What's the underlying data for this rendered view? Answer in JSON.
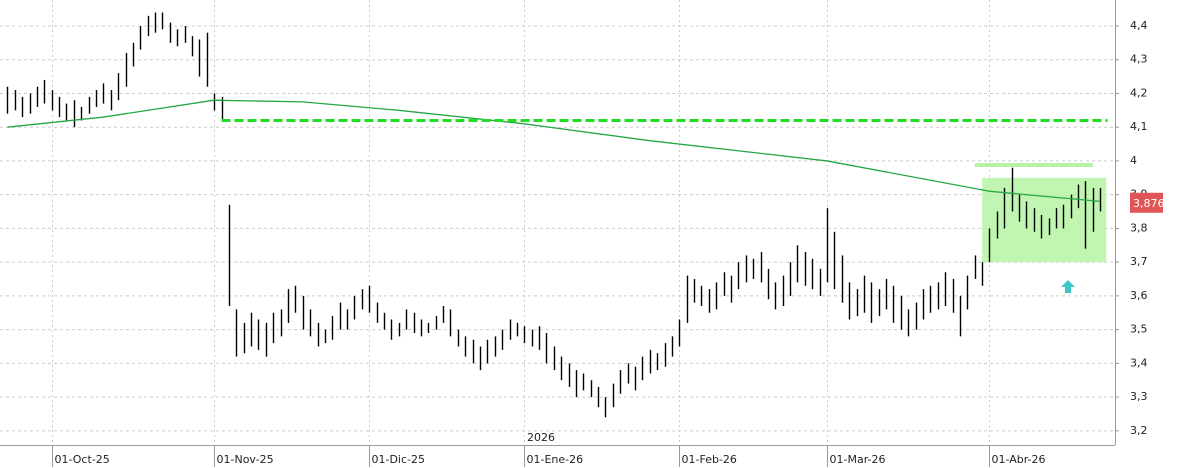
{
  "chart_data": {
    "type": "ohlc",
    "high": [
      4.22,
      4.21,
      4.19,
      4.2,
      4.22,
      4.24,
      4.21,
      4.19,
      4.17,
      4.18,
      4.16,
      4.19,
      4.21,
      4.23,
      4.21,
      4.26,
      4.32,
      4.35,
      4.4,
      4.43,
      4.44,
      4.44,
      4.41,
      4.39,
      4.4,
      4.37,
      4.36,
      4.38,
      4.2,
      4.19,
      3.87,
      3.56,
      3.52,
      3.55,
      3.53,
      3.52,
      3.55,
      3.56,
      3.62,
      3.63,
      3.6,
      3.56,
      3.52,
      3.5,
      3.54,
      3.58,
      3.56,
      3.6,
      3.62,
      3.63,
      3.58,
      3.55,
      3.53,
      3.52,
      3.56,
      3.55,
      3.53,
      3.52,
      3.54,
      3.57,
      3.56,
      3.5,
      3.48,
      3.47,
      3.45,
      3.47,
      3.48,
      3.5,
      3.53,
      3.52,
      3.51,
      3.5,
      3.51,
      3.49,
      3.45,
      3.42,
      3.4,
      3.38,
      3.37,
      3.35,
      3.33,
      3.3,
      3.34,
      3.38,
      3.4,
      3.39,
      3.42,
      3.44,
      3.43,
      3.46,
      3.48,
      3.53,
      3.66,
      3.65,
      3.63,
      3.62,
      3.64,
      3.67,
      3.66,
      3.7,
      3.72,
      3.71,
      3.73,
      3.68,
      3.64,
      3.66,
      3.7,
      3.75,
      3.73,
      3.71,
      3.68,
      3.86,
      3.79,
      3.72,
      3.64,
      3.62,
      3.66,
      3.64,
      3.62,
      3.65,
      3.63,
      3.6,
      3.56,
      3.58,
      3.62,
      3.63,
      3.64,
      3.67,
      3.65,
      3.6,
      3.66,
      3.72,
      3.7,
      3.8,
      3.85,
      3.92,
      3.98,
      3.9,
      3.88,
      3.86,
      3.84,
      3.83,
      3.86,
      3.87,
      3.9,
      3.93,
      3.94,
      3.92,
      3.92
    ],
    "low": [
      4.14,
      4.15,
      4.13,
      4.14,
      4.16,
      4.17,
      4.15,
      4.13,
      4.12,
      4.1,
      4.12,
      4.14,
      4.16,
      4.17,
      4.15,
      4.18,
      4.22,
      4.28,
      4.33,
      4.37,
      4.38,
      4.39,
      4.35,
      4.34,
      4.35,
      4.31,
      4.25,
      4.22,
      4.15,
      4.12,
      3.57,
      3.42,
      3.43,
      3.45,
      3.44,
      3.42,
      3.46,
      3.48,
      3.52,
      3.55,
      3.5,
      3.48,
      3.45,
      3.46,
      3.47,
      3.5,
      3.5,
      3.53,
      3.56,
      3.55,
      3.52,
      3.5,
      3.47,
      3.48,
      3.5,
      3.49,
      3.48,
      3.49,
      3.5,
      3.52,
      3.48,
      3.45,
      3.42,
      3.4,
      3.38,
      3.4,
      3.42,
      3.44,
      3.47,
      3.48,
      3.46,
      3.45,
      3.44,
      3.4,
      3.38,
      3.35,
      3.33,
      3.3,
      3.32,
      3.3,
      3.27,
      3.24,
      3.27,
      3.31,
      3.34,
      3.32,
      3.35,
      3.37,
      3.38,
      3.39,
      3.42,
      3.45,
      3.52,
      3.58,
      3.57,
      3.55,
      3.56,
      3.6,
      3.58,
      3.62,
      3.64,
      3.65,
      3.64,
      3.59,
      3.56,
      3.57,
      3.6,
      3.64,
      3.63,
      3.62,
      3.6,
      3.64,
      3.62,
      3.58,
      3.53,
      3.54,
      3.55,
      3.52,
      3.54,
      3.56,
      3.52,
      3.5,
      3.48,
      3.5,
      3.53,
      3.55,
      3.56,
      3.57,
      3.55,
      3.48,
      3.56,
      3.65,
      3.63,
      3.7,
      3.77,
      3.8,
      3.85,
      3.82,
      3.8,
      3.79,
      3.77,
      3.78,
      3.8,
      3.8,
      3.83,
      3.86,
      3.74,
      3.79,
      3.85
    ],
    "moving_average": {
      "x": [
        0,
        13,
        28,
        40,
        53,
        70,
        87,
        111,
        133,
        148
      ],
      "values": [
        4.1,
        4.13,
        4.18,
        4.175,
        4.15,
        4.11,
        4.06,
        4.0,
        3.91,
        3.88
      ]
    },
    "resistance": {
      "value": 4.12,
      "x": [
        29,
        149
      ]
    },
    "range_top": {
      "value": 3.988,
      "x": [
        131,
        147
      ]
    },
    "range_box": {
      "x": [
        132,
        148
      ],
      "y": [
        3.7,
        3.95
      ]
    },
    "last_price": {
      "value": 3.876,
      "label": "3,876"
    },
    "year_label": "2026",
    "xlim": [
      -1,
      150
    ],
    "xticks": [
      {
        "value": 6,
        "label": "01-Oct-25"
      },
      {
        "value": 28,
        "label": "01-Nov-25"
      },
      {
        "value": 49,
        "label": "01-Dic-25"
      },
      {
        "value": 70,
        "label": "01-Ene-26"
      },
      {
        "value": 91,
        "label": "01-Feb-26"
      },
      {
        "value": 111,
        "label": "01-Mar-26"
      },
      {
        "value": 133,
        "label": "01-Abr-26"
      }
    ],
    "ylim": [
      3.158,
      4.477
    ],
    "yticks": [
      {
        "value": 3.2,
        "label": "3,2"
      },
      {
        "value": 3.3,
        "label": "3,3"
      },
      {
        "value": 3.4,
        "label": "3,4"
      },
      {
        "value": 3.5,
        "label": "3,5"
      },
      {
        "value": 3.6,
        "label": "3,6"
      },
      {
        "value": 3.7,
        "label": "3,7"
      },
      {
        "value": 3.8,
        "label": "3,8"
      },
      {
        "value": 3.9,
        "label": "3,9"
      },
      4,
      {
        "value": 4.1,
        "label": "4,1"
      },
      {
        "value": 4.2,
        "label": "4,2"
      },
      {
        "value": 4.3,
        "label": "4,3"
      },
      {
        "value": 4.4,
        "label": "4,4"
      }
    ],
    "grid": true
  }
}
